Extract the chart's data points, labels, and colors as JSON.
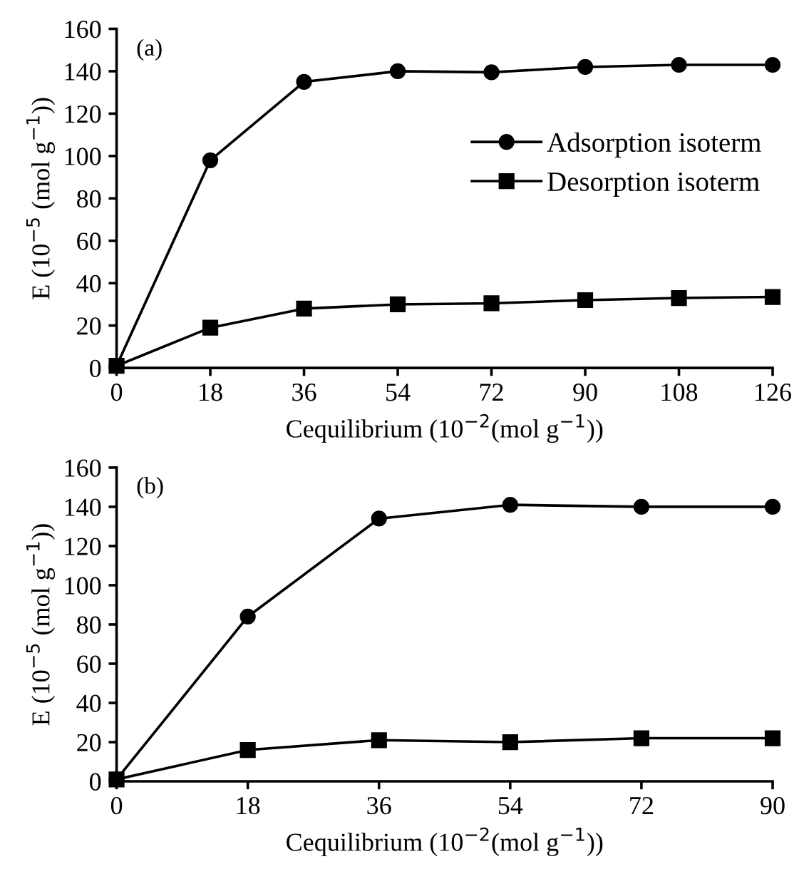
{
  "chart_data": [
    {
      "type": "line",
      "annotations": [
        "(a)"
      ],
      "xlabel": "Cequilibrium (10$^{−2}$(mol g$^{−1}$))",
      "ylabel": "E (10$^{−5}$ (mol g$^{−1}$))",
      "x": [
        0,
        18,
        36,
        54,
        72,
        90,
        108,
        126
      ],
      "xlim": [
        0,
        126
      ],
      "xticks": [
        0,
        18,
        36,
        54,
        72,
        90,
        108,
        126
      ],
      "ylim": [
        0,
        160
      ],
      "yticks": [
        0,
        20,
        40,
        60,
        80,
        100,
        120,
        140,
        160
      ],
      "grid": false,
      "legend": "right",
      "line_style": "solid",
      "series": [
        {
          "name": "Adsorption isoterm",
          "color": "#000000",
          "marker": "circle",
          "values": [
            1,
            98,
            135,
            140,
            139.5,
            142,
            143,
            143
          ]
        },
        {
          "name": "Desorption isoterm",
          "color": "#000000",
          "marker": "square",
          "values": [
            1,
            19,
            28,
            30,
            30.5,
            32,
            33,
            33.5
          ]
        }
      ]
    },
    {
      "type": "line",
      "annotations": [
        "(b)"
      ],
      "xlabel": "Cequilibrium (10$^{−2}$(mol g$^{−1}$))",
      "ylabel": "E (10$^{−5}$ (mol g$^{−1}$))",
      "x": [
        0,
        18,
        36,
        54,
        72,
        90
      ],
      "xlim": [
        0,
        90
      ],
      "xticks": [
        0,
        18,
        36,
        54,
        72,
        90
      ],
      "ylim": [
        0,
        160
      ],
      "yticks": [
        0,
        20,
        40,
        60,
        80,
        100,
        120,
        140,
        160
      ],
      "grid": false,
      "legend": false,
      "line_style": "solid",
      "series": [
        {
          "color": "#000000",
          "marker": "circle",
          "values": [
            1,
            84,
            134,
            141,
            140,
            140
          ]
        },
        {
          "color": "#000000",
          "marker": "square",
          "values": [
            1,
            16,
            21,
            20,
            22,
            22
          ]
        }
      ]
    }
  ]
}
